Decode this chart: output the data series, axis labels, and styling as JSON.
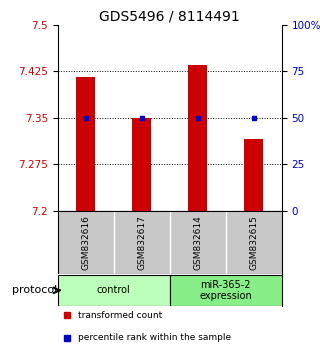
{
  "title": "GDS5496 / 8114491",
  "samples": [
    "GSM832616",
    "GSM832617",
    "GSM832614",
    "GSM832615"
  ],
  "bar_values": [
    7.415,
    7.35,
    7.435,
    7.315
  ],
  "percentile_values": [
    50,
    50,
    50,
    50
  ],
  "y_min": 7.2,
  "y_max": 7.5,
  "y_ticks_left": [
    7.2,
    7.275,
    7.35,
    7.425,
    7.5
  ],
  "y_ticks_right": [
    0,
    25,
    50,
    75,
    100
  ],
  "right_tick_labels": [
    "0",
    "25",
    "50",
    "75",
    "100%"
  ],
  "bar_color": "#cc0000",
  "dot_color": "#0000cc",
  "groups": [
    {
      "label": "control",
      "color": "#bbffbb"
    },
    {
      "label": "miR-365-2\nexpression",
      "color": "#88ee88"
    }
  ],
  "protocol_label": "protocol",
  "legend_bar_label": "transformed count",
  "legend_dot_label": "percentile rank within the sample",
  "title_fontsize": 10,
  "tick_fontsize": 7.5,
  "sample_box_color": "#c8c8c8",
  "background_color": "#ffffff",
  "grid_ticks": [
    7.275,
    7.35,
    7.425
  ]
}
